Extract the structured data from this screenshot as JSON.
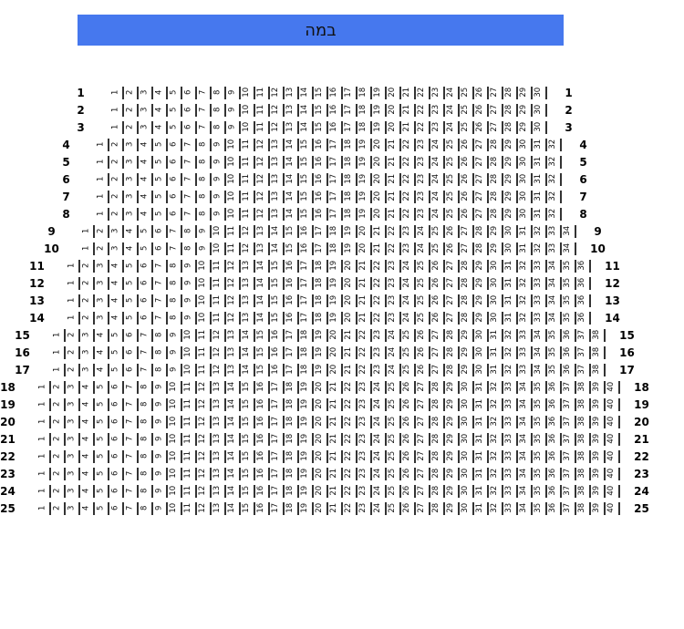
{
  "stage": {
    "label": "במה",
    "color": "#4678ee"
  },
  "rows": [
    {
      "label": "1",
      "seats": 30
    },
    {
      "label": "2",
      "seats": 30
    },
    {
      "label": "3",
      "seats": 30
    },
    {
      "label": "4",
      "seats": 32
    },
    {
      "label": "5",
      "seats": 32
    },
    {
      "label": "6",
      "seats": 32
    },
    {
      "label": "7",
      "seats": 32
    },
    {
      "label": "8",
      "seats": 32
    },
    {
      "label": "9",
      "seats": 34
    },
    {
      "label": "10",
      "seats": 34
    },
    {
      "label": "11",
      "seats": 36
    },
    {
      "label": "12",
      "seats": 36
    },
    {
      "label": "13",
      "seats": 36
    },
    {
      "label": "14",
      "seats": 36
    },
    {
      "label": "15",
      "seats": 38
    },
    {
      "label": "16",
      "seats": 38
    },
    {
      "label": "17",
      "seats": 38
    },
    {
      "label": "18",
      "seats": 40
    },
    {
      "label": "19",
      "seats": 40
    },
    {
      "label": "20",
      "seats": 40
    },
    {
      "label": "21",
      "seats": 40
    },
    {
      "label": "22",
      "seats": 40
    },
    {
      "label": "23",
      "seats": 40
    },
    {
      "label": "24",
      "seats": 40
    },
    {
      "label": "25",
      "seats": 40
    }
  ]
}
